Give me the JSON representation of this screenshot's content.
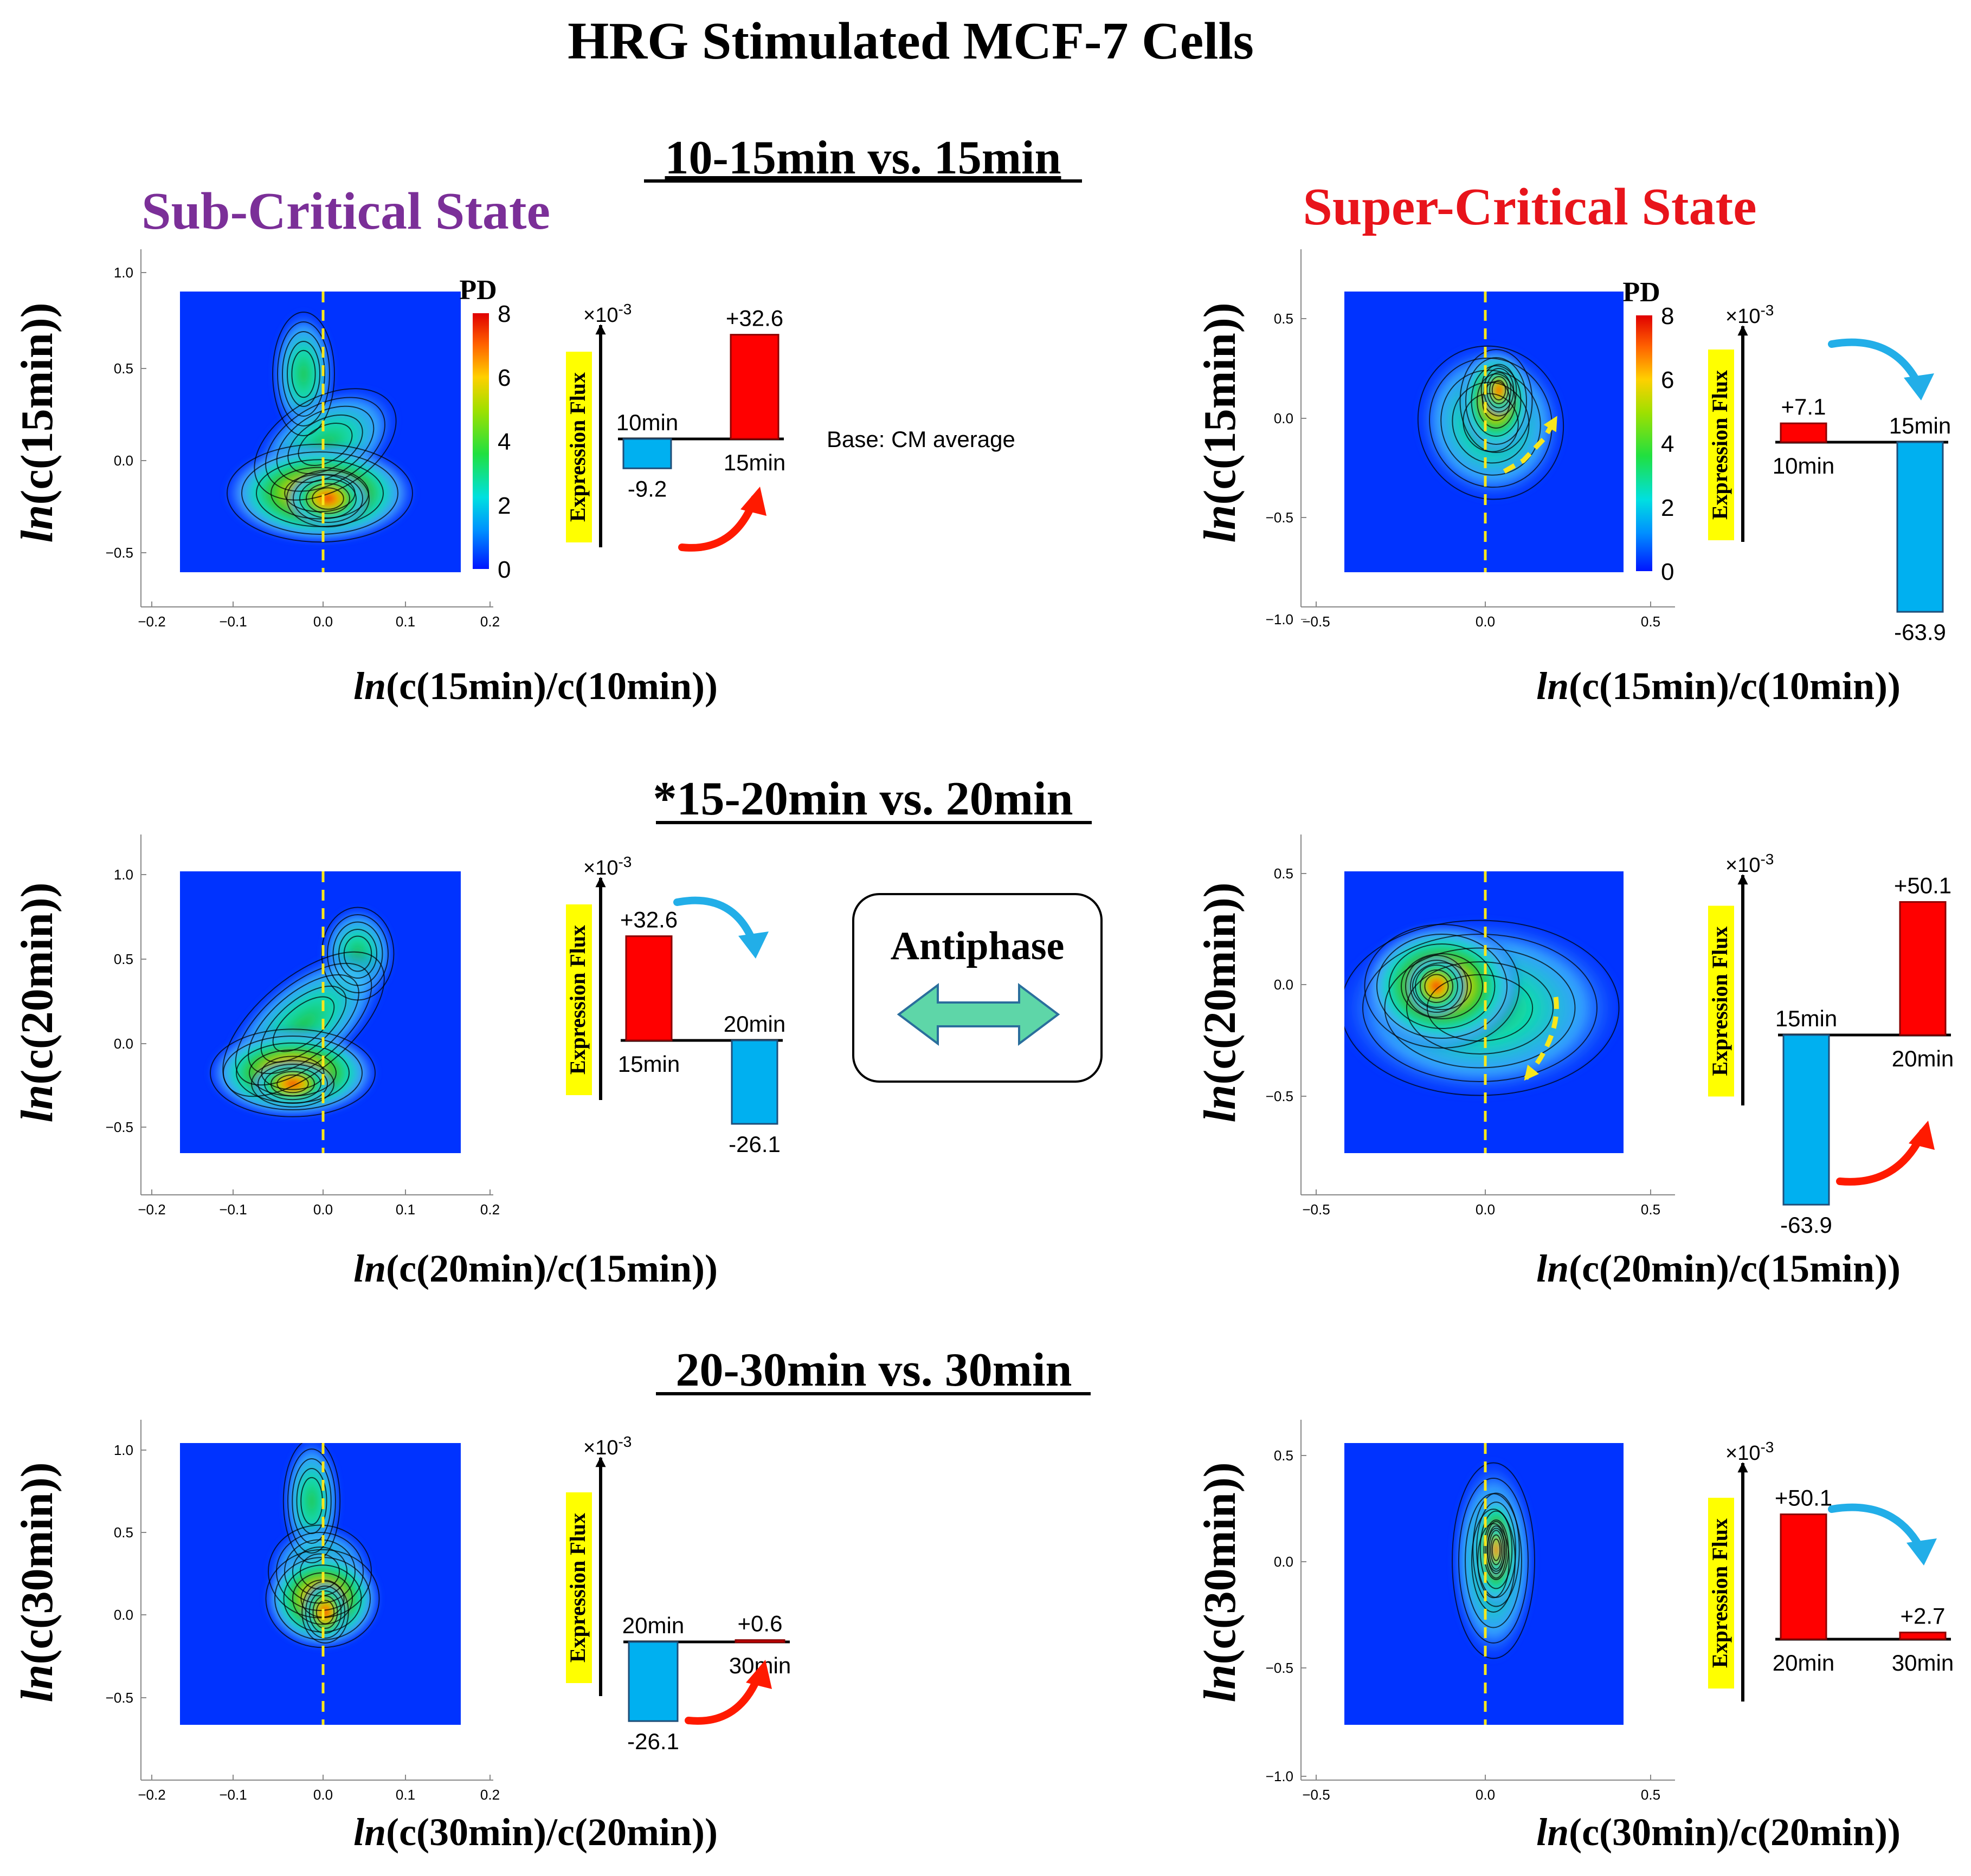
{
  "title": "HRG Stimulated MCF-7 Cells",
  "state_labels": {
    "sub": {
      "text": "Sub-Critical State",
      "color": "#7B2F98"
    },
    "super": {
      "text": "Super-Critical State",
      "color": "#E8141B"
    }
  },
  "colors": {
    "red_bar": "#FF0000",
    "blue_bar": "#00B0F0",
    "cyan_arrow": "#22AEE8",
    "red_arrow": "#FF1A00",
    "highlight": "#FFFF00",
    "dashed": "#F8E71C",
    "antiphase_arrow": "#5ED6A8"
  },
  "colorbar": {
    "label": "PD",
    "ticks": [
      "0",
      "2",
      "4",
      "6",
      "8"
    ]
  },
  "flux_axis": {
    "label": "Expression Flux",
    "scale_prefix": "×10",
    "scale_exp": "-3"
  },
  "base_note": "Base: CM average",
  "antiphase": "Antiphase",
  "rows": [
    {
      "header": "10-15min vs. 15min",
      "sub": {
        "ylabel_fn": "ln",
        "ylabel_rest": "(c(15min))",
        "xlabel_fn": "ln",
        "xlabel_rest": "(c(15min)/c(10min))",
        "xticks": [
          "−0.2",
          "−0.1",
          "0.0",
          "0.1",
          "0.2"
        ],
        "yticks": [
          "1.0",
          "0.5",
          "0.0",
          "−0.5"
        ],
        "flux": {
          "before_label": "10min",
          "before_value": "-9.2",
          "after_label": "15min",
          "after_value": "+32.6"
        }
      },
      "super": {
        "ylabel_fn": "ln",
        "ylabel_rest": "(c(15min))",
        "xlabel_fn": "ln",
        "xlabel_rest": "(c(15min)/c(10min))",
        "xticks": [
          "−0.5",
          "0.0",
          "0.5"
        ],
        "yticks": [
          "0.5",
          "0.0",
          "−0.5",
          "−1.0"
        ],
        "flux": {
          "before_label": "10min",
          "before_value": "+7.1",
          "after_label": "15min",
          "after_value": "-63.9"
        }
      }
    },
    {
      "header": "*15-20min vs. 20min",
      "sub": {
        "ylabel_fn": "ln",
        "ylabel_rest": "(c(20min))",
        "xlabel_fn": "ln",
        "xlabel_rest": "(c(20min)/c(15min))",
        "xticks": [
          "−0.2",
          "−0.1",
          "0.0",
          "0.1",
          "0.2"
        ],
        "yticks": [
          "1.0",
          "0.5",
          "0.0",
          "−0.5"
        ],
        "flux": {
          "before_label": "15min",
          "before_value": "+32.6",
          "after_label": "20min",
          "after_value": "-26.1"
        }
      },
      "super": {
        "ylabel_fn": "ln",
        "ylabel_rest": "(c(20min))",
        "xlabel_fn": "ln",
        "xlabel_rest": "(c(20min)/c(15min))",
        "xticks": [
          "−0.5",
          "0.0",
          "0.5"
        ],
        "yticks": [
          "0.5",
          "0.0",
          "−0.5"
        ],
        "flux": {
          "before_label": "15min",
          "before_value": "-63.9",
          "after_label": "20min",
          "after_value": "+50.1"
        }
      }
    },
    {
      "header": "20-30min vs. 30min",
      "sub": {
        "ylabel_fn": "ln",
        "ylabel_rest": "(c(30min))",
        "xlabel_fn": "ln",
        "xlabel_rest": "(c(30min)/c(20min))",
        "xticks": [
          "−0.2",
          "−0.1",
          "0.0",
          "0.1",
          "0.2"
        ],
        "yticks": [
          "1.0",
          "0.5",
          "0.0",
          "−0.5"
        ],
        "flux": {
          "before_label": "20min",
          "before_value": "-26.1",
          "after_label": "30min",
          "after_value": "+0.6"
        }
      },
      "super": {
        "ylabel_fn": "ln",
        "ylabel_rest": "(c(30min))",
        "xlabel_fn": "ln",
        "xlabel_rest": "(c(30min)/c(20min))",
        "xticks": [
          "−0.5",
          "0.0",
          "0.5"
        ],
        "yticks": [
          "0.5",
          "0.0",
          "−0.5",
          "−1.0"
        ],
        "flux": {
          "before_label": "20min",
          "before_value": "+50.1",
          "after_label": "30min",
          "after_value": "+2.7"
        }
      }
    }
  ],
  "chart_data": {
    "type": "bar",
    "title": "HRG Stimulated MCF-7 Cells — Expression Flux (×10^-3, base: CM average)",
    "categories": [
      "10min",
      "15min",
      "20min",
      "30min"
    ],
    "series": [
      {
        "name": "Sub-Critical State",
        "values": [
          -9.2,
          32.6,
          -26.1,
          0.6
        ]
      },
      {
        "name": "Super-Critical State",
        "values": [
          7.1,
          -63.9,
          50.1,
          2.7
        ]
      }
    ],
    "ylabel": "Expression Flux (×10^-3)",
    "density_plots": "Probability density (PD, 0–8) of expression over ln(c(t)/c(t−1)) vs ln(c(t))"
  }
}
